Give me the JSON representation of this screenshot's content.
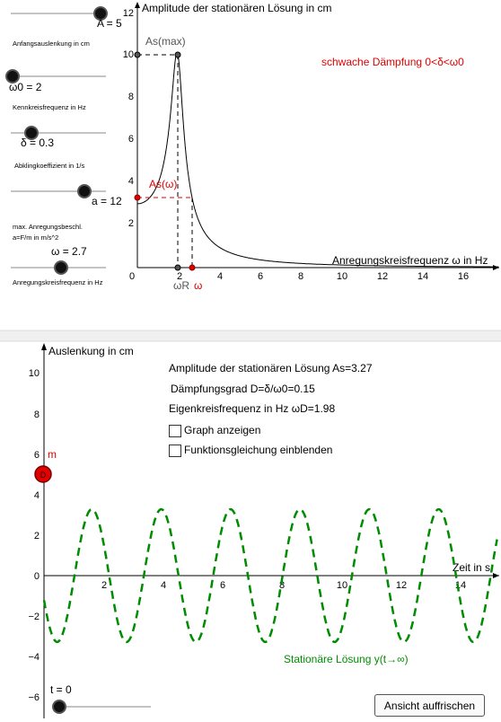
{
  "panel1": {
    "y_axis_title": "Amplitude der stationären Lösung in cm",
    "x_axis_title": "Anregungskreisfrequenz ω in Hz",
    "y_ticks": [
      "12",
      "10",
      "8",
      "6",
      "4",
      "2"
    ],
    "x_ticks": [
      "0",
      "2",
      "4",
      "6",
      "8",
      "10",
      "12",
      "14",
      "16"
    ],
    "label_as_max": "As(max)",
    "label_as_omega": "As(ω)",
    "label_omega_r": "ωR",
    "label_omega": "ω",
    "damping_note": "schwache Dämpfung 0<δ<ω0",
    "sliders": [
      {
        "value_label": "A = 5",
        "caption": "Anfangsauslenkung in cm"
      },
      {
        "value_label": "ω0 = 2",
        "caption": "Kennkreisfrequenz in Hz"
      },
      {
        "value_label": "δ = 0.3",
        "caption": "Abklingkoeffizient in 1/s"
      },
      {
        "value_label": "a = 12",
        "caption_line1": "max. Anregungsbeschl.",
        "caption_line2": "a=F/m in m/s^2"
      },
      {
        "value_label": "ω = 2.7",
        "caption": "Anregungskreisfrequenz in Hz"
      }
    ]
  },
  "panel2": {
    "y_axis_title": "Auslenkung in cm",
    "x_axis_title": "Zeit in s",
    "y_ticks": [
      "10",
      "8",
      "6",
      "4",
      "2",
      "0",
      "−2",
      "−4",
      "−6"
    ],
    "x_ticks": [
      "2",
      "4",
      "6",
      "8",
      "10",
      "12",
      "14"
    ],
    "info_amplitude": "Amplitude der stationären Lösung As=3.27",
    "info_damping": "Dämpfungsgrad D=δ/ω0=0.15",
    "info_eigen": "Eigenkreisfrequenz in Hz ωD=1.98",
    "checkbox_graph": "Graph anzeigen",
    "checkbox_equation": "Funktionsgleichung einblenden",
    "mass_label": "m",
    "mass_marker": "D",
    "curve_label": "Stationäre Lösung y(t→∞)",
    "time_slider_label": "t = 0",
    "refresh_button": "Ansicht auffrischen"
  },
  "colors": {
    "red": "#e00000",
    "green": "#008c00",
    "axis": "#000000"
  }
}
